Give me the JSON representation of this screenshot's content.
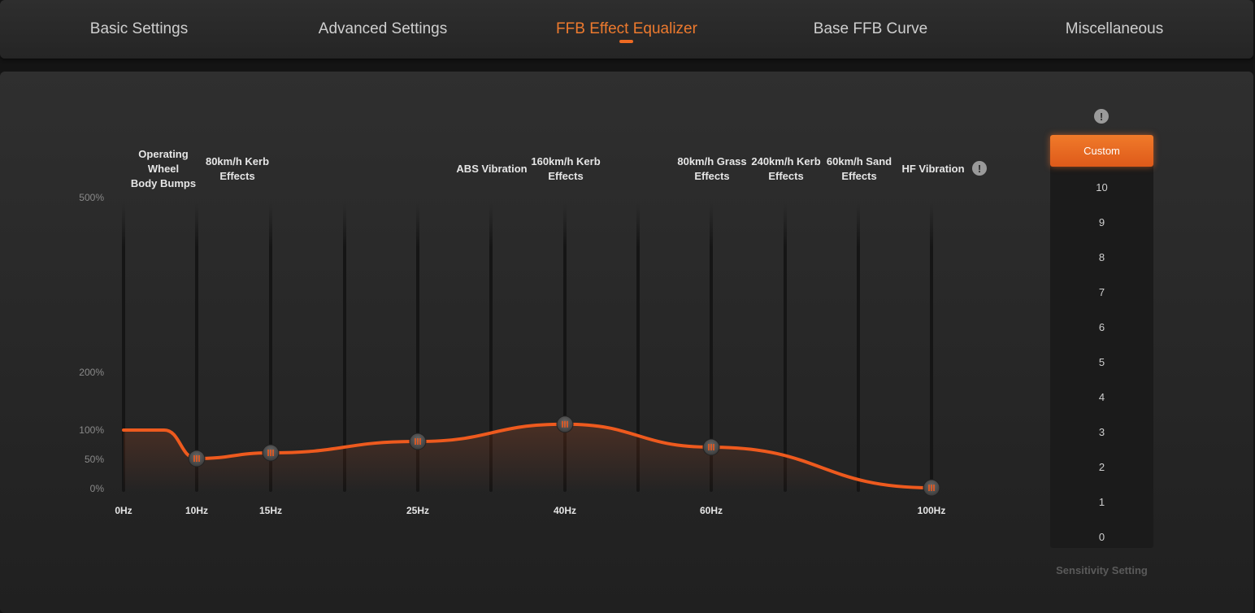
{
  "tabs": [
    {
      "label": "Basic Settings",
      "active": false
    },
    {
      "label": "Advanced Settings",
      "active": false
    },
    {
      "label": "FFB Effect Equalizer",
      "active": true
    },
    {
      "label": "Base FFB Curve",
      "active": false
    },
    {
      "label": "Miscellaneous",
      "active": false
    }
  ],
  "equalizer": {
    "band_labels": [
      "Operating\nWheel\nBody Bumps",
      "80km/h Kerb\nEffects",
      "ABS Vibration",
      "160km/h Kerb\nEffects",
      "80km/h Grass\nEffects",
      "240km/h Kerb\nEffects",
      "60km/h Sand\nEffects",
      "HF Vibration"
    ],
    "y_ticks": [
      "500%",
      "200%",
      "100%",
      "50%",
      "0%"
    ],
    "x_ticks": [
      "0Hz",
      "10Hz",
      "15Hz",
      "25Hz",
      "40Hz",
      "60Hz",
      "100Hz"
    ],
    "info_icon": "!",
    "curve_color": "#ee5a1e",
    "points": [
      {
        "freq": "10Hz",
        "gain_percent": 50
      },
      {
        "freq": "15Hz",
        "gain_percent": 60
      },
      {
        "freq": "25Hz",
        "gain_percent": 80
      },
      {
        "freq": "40Hz",
        "gain_percent": 110
      },
      {
        "freq": "60Hz",
        "gain_percent": 70
      },
      {
        "freq": "100Hz",
        "gain_percent": 0
      }
    ]
  },
  "sensitivity": {
    "info_icon": "!",
    "selected": "Custom",
    "levels": [
      "10",
      "9",
      "8",
      "7",
      "6",
      "5",
      "4",
      "3",
      "2",
      "1",
      "0"
    ],
    "caption": "Sensitivity Setting"
  },
  "colors": {
    "accent": "#ee6a22",
    "background": "#141414",
    "panel": "#2a2a2a"
  }
}
